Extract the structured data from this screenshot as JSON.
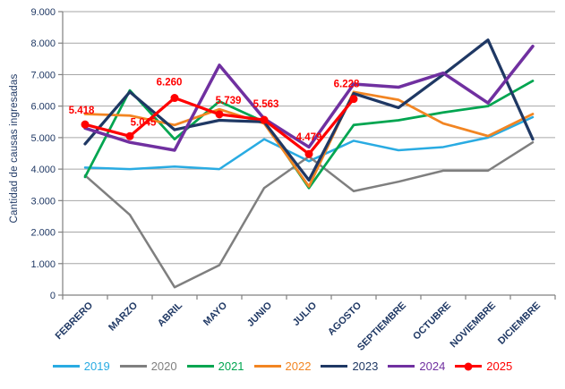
{
  "chart_data": {
    "type": "line",
    "title": "",
    "xlabel": "",
    "ylabel": "Cantidad de causas ingresadas",
    "ylim": [
      0,
      9000
    ],
    "ytick_step": 1000,
    "ytick_labels": [
      "0",
      "1.000",
      "2.000",
      "3.000",
      "4.000",
      "5.000",
      "6.000",
      "7.000",
      "8.000",
      "9.000"
    ],
    "categories": [
      "FEBRERO",
      "MARZO",
      "ABRIL",
      "MAYO",
      "JUNIO",
      "JULIO",
      "AGOSTO",
      "SEPTIEMBRE",
      "OCTUBRE",
      "NOVIEMBRE",
      "DICIEMBRE"
    ],
    "grid": true,
    "legend_position": "bottom",
    "colors": {
      "axis_text": "#1F3864",
      "grid_line": "#A6A6A6",
      "axis_line": "#808080",
      "data_label": "#FF0000"
    },
    "series": [
      {
        "name": "2019",
        "color": "#29ABE2",
        "values": [
          4050,
          4000,
          4080,
          4000,
          4950,
          4250,
          4900,
          4600,
          4700,
          5000,
          5650
        ]
      },
      {
        "name": "2020",
        "color": "#7F7F7F",
        "values": [
          3800,
          2550,
          250,
          950,
          3400,
          4400,
          3300,
          3600,
          3950,
          3950,
          4850
        ]
      },
      {
        "name": "2021",
        "color": "#00A550",
        "values": [
          3750,
          6500,
          4950,
          6150,
          5500,
          3400,
          5400,
          5550,
          5800,
          6000,
          6800
        ]
      },
      {
        "name": "2022",
        "color": "#F28522",
        "values": [
          5750,
          5700,
          5400,
          5900,
          5450,
          3450,
          6450,
          6200,
          5450,
          5050,
          5750
        ]
      },
      {
        "name": "2023",
        "color": "#1F3864",
        "values": [
          4800,
          6450,
          5250,
          5550,
          5500,
          3650,
          6400,
          5950,
          7000,
          8100,
          4950
        ]
      },
      {
        "name": "2024",
        "color": "#7030A0",
        "values": [
          5300,
          4850,
          4600,
          7300,
          5600,
          4700,
          6700,
          6600,
          7050,
          6100,
          7900
        ]
      },
      {
        "name": "2025",
        "color": "#FF0000",
        "marker": true,
        "values": [
          5418,
          5045,
          6260,
          5739,
          5563,
          4479,
          6228
        ],
        "data_labels": [
          "5.418",
          "5.045",
          "6.260",
          "5.739",
          "5.563",
          "4.479",
          "6.228"
        ]
      }
    ]
  }
}
